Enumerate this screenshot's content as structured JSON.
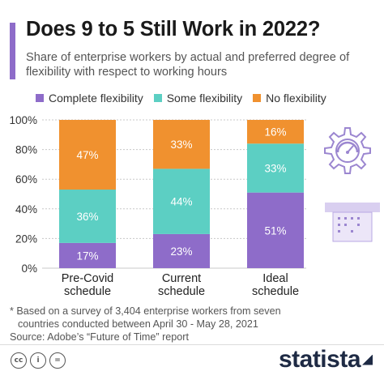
{
  "header": {
    "title": "Does 9 to 5 Still Work in 2022?",
    "subtitle": "Share of enterprise workers by actual and preferred degree of flexibility with respect to working hours"
  },
  "colors": {
    "accent": "#8e6cc9",
    "complete": "#8e6cc9",
    "some": "#5ccfc3",
    "none": "#f0912f",
    "grid": "#c8c8c8"
  },
  "legend": [
    {
      "label": "Complete flexibility",
      "color": "#8e6cc9"
    },
    {
      "label": "Some flexibility",
      "color": "#5ccfc3"
    },
    {
      "label": "No flexibility",
      "color": "#f0912f"
    }
  ],
  "chart_data": {
    "type": "bar",
    "stacked": true,
    "categories": [
      [
        "Pre-Covid",
        "schedule"
      ],
      [
        "Current",
        "schedule"
      ],
      [
        "Ideal",
        "schedule"
      ]
    ],
    "series": [
      {
        "name": "Complete flexibility",
        "color": "#8e6cc9",
        "values": [
          17,
          23,
          51
        ]
      },
      {
        "name": "Some flexibility",
        "color": "#5ccfc3",
        "values": [
          36,
          44,
          33
        ]
      },
      {
        "name": "No flexibility",
        "color": "#f0912f",
        "values": [
          47,
          33,
          16
        ]
      }
    ],
    "ylim": [
      0,
      100
    ],
    "yticks": [
      0,
      20,
      40,
      60,
      80,
      100
    ],
    "ytick_labels": [
      "0%",
      "20%",
      "40%",
      "60%",
      "80%",
      "100%"
    ],
    "value_suffix": "%",
    "grid": true
  },
  "footnote": {
    "line1": "* Based on a survey of 3,404 enterprise workers from seven",
    "line2": "countries conducted between April 30 - May 28, 2021",
    "source": "Source: Adobe’s “Future of Time” report"
  },
  "footer": {
    "cc_icons": [
      "cc",
      "i",
      "="
    ],
    "logo": "statista"
  },
  "decoration": {
    "icons": [
      "gear-icon",
      "speedometer-icon",
      "calendar-icon"
    ]
  }
}
